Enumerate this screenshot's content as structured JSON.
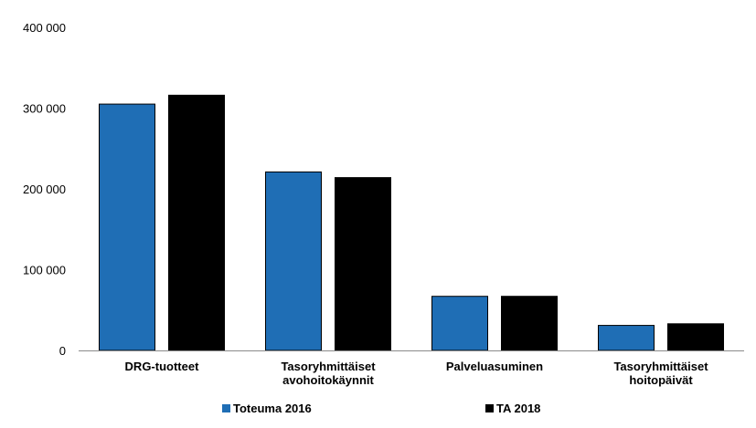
{
  "chart_data": {
    "type": "bar",
    "title": "",
    "xlabel": "",
    "ylabel": "",
    "ylim": [
      0,
      400000
    ],
    "grid": false,
    "legend_position": "bottom",
    "y_ticks": [
      {
        "value": 0,
        "label": "0"
      },
      {
        "value": 100000,
        "label": "100 000"
      },
      {
        "value": 200000,
        "label": "200 000"
      },
      {
        "value": 300000,
        "label": "300 000"
      },
      {
        "value": 400000,
        "label": "400 000"
      }
    ],
    "categories": [
      [
        "DRG-tuotteet"
      ],
      [
        "Tasoryhmittäiset",
        "avohoitokäynnit"
      ],
      [
        "Palveluasuminen"
      ],
      [
        "Tasoryhmittäiset",
        "hoitopäivät"
      ]
    ],
    "series": [
      {
        "name": "Toteuma 2016",
        "color": "#1f6eb5",
        "values": [
          305000,
          221000,
          67000,
          31000
        ]
      },
      {
        "name": "TA 2018",
        "color": "#000000",
        "values": [
          316000,
          214000,
          67000,
          33000
        ]
      }
    ]
  }
}
